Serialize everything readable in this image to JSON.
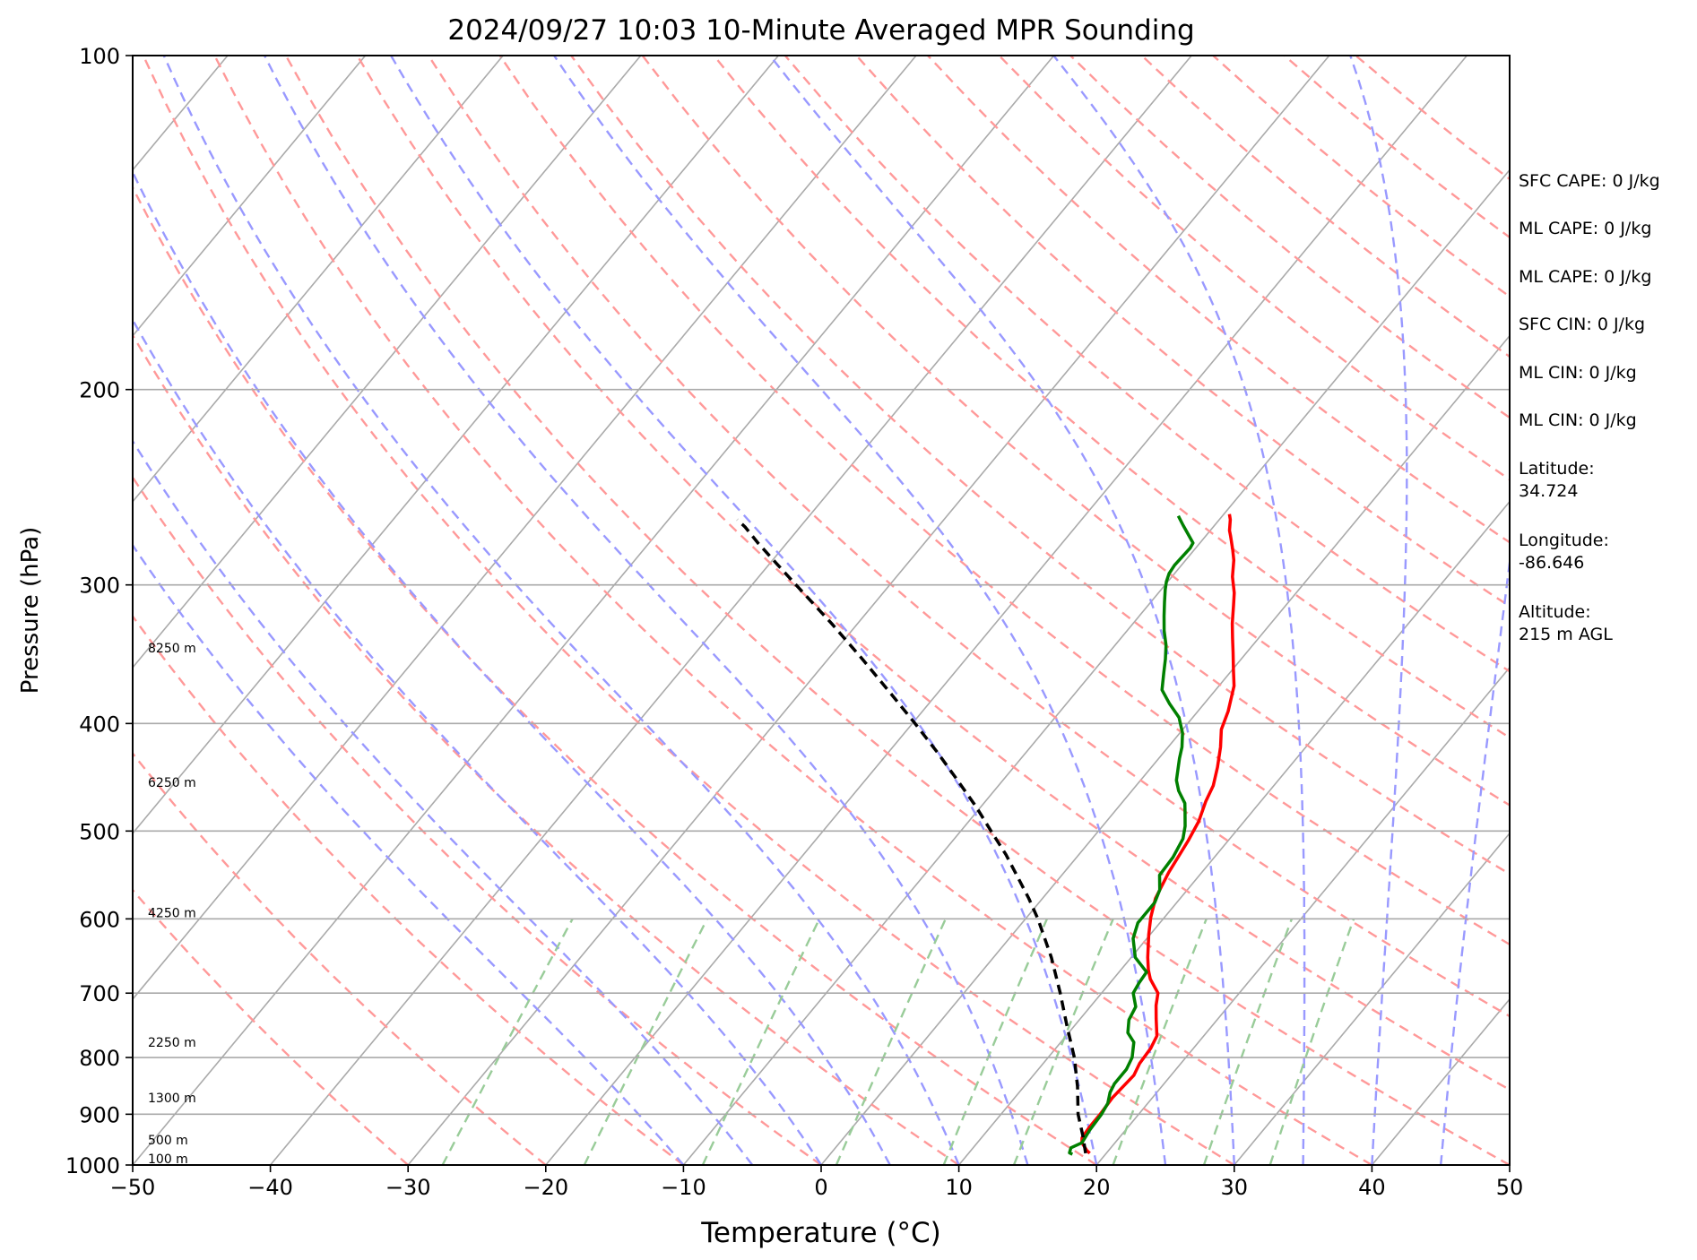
{
  "chart_data": {
    "type": "skew-t",
    "title": "2024/09/27 10:03 10-Minute Averaged MPR Sounding",
    "xlabel": "Temperature (°C)",
    "ylabel": "Pressure (hPa)",
    "xlim": [
      -50,
      50
    ],
    "ylim": [
      1000,
      100
    ],
    "y_scale": "log",
    "x_ticks": [
      "−50",
      "−40",
      "−30",
      "−20",
      "−10",
      "0",
      "10",
      "20",
      "30",
      "40",
      "50"
    ],
    "x_tick_values": [
      -50,
      -40,
      -30,
      -20,
      -10,
      0,
      10,
      20,
      30,
      40,
      50
    ],
    "y_ticks": [
      "100",
      "200",
      "300",
      "400",
      "500",
      "600",
      "700",
      "800",
      "900",
      "1000"
    ],
    "y_tick_values": [
      100,
      200,
      300,
      400,
      500,
      600,
      700,
      800,
      900,
      1000
    ],
    "height_labels": [
      {
        "text": "8250 m",
        "pressure": 345
      },
      {
        "text": "6250 m",
        "pressure": 456
      },
      {
        "text": "4250 m",
        "pressure": 598
      },
      {
        "text": "2250 m",
        "pressure": 782
      },
      {
        "text": "1300 m",
        "pressure": 878
      },
      {
        "text": "500 m",
        "pressure": 958
      },
      {
        "text": "100 m",
        "pressure": 996
      }
    ],
    "series": [
      {
        "key": "temperature",
        "color": "#ff0000",
        "points": [
          [
            18.8,
            976
          ],
          [
            18.4,
            970
          ],
          [
            17.6,
            955
          ],
          [
            17.3,
            945
          ],
          [
            17.2,
            925
          ],
          [
            17.2,
            900
          ],
          [
            17.1,
            870
          ],
          [
            17.3,
            830
          ],
          [
            17.0,
            810
          ],
          [
            16.9,
            785
          ],
          [
            16.6,
            765
          ],
          [
            15.5,
            738
          ],
          [
            14.7,
            718
          ],
          [
            14.1,
            700
          ],
          [
            12.7,
            680
          ],
          [
            12.0,
            667
          ],
          [
            11.2,
            650
          ],
          [
            9.9,
            620
          ],
          [
            9.0,
            598
          ],
          [
            8.2,
            575
          ],
          [
            7.6,
            545
          ],
          [
            7.1,
            510
          ],
          [
            6.7,
            490
          ],
          [
            6.0,
            470
          ],
          [
            5.6,
            455
          ],
          [
            4.8,
            438
          ],
          [
            3.8,
            420
          ],
          [
            2.8,
            405
          ],
          [
            2.2,
            390
          ],
          [
            1.1,
            370
          ],
          [
            0.1,
            358
          ],
          [
            -1.0,
            345
          ],
          [
            -1.9,
            335
          ],
          [
            -2.8,
            325
          ],
          [
            -3.8,
            313
          ],
          [
            -4.5,
            305
          ],
          [
            -5.6,
            295
          ],
          [
            -6.5,
            285
          ],
          [
            -7.2,
            279
          ],
          [
            -8.2,
            271
          ],
          [
            -8.6,
            268
          ],
          [
            -9.2,
            262
          ],
          [
            -9.6,
            259
          ]
        ]
      },
      {
        "key": "dewpoint",
        "color": "#008000",
        "points": [
          [
            17.6,
            978
          ],
          [
            17.3,
            975
          ],
          [
            17.1,
            965
          ],
          [
            17.6,
            955
          ],
          [
            17.4,
            930
          ],
          [
            17.3,
            900
          ],
          [
            17.1,
            880
          ],
          [
            16.6,
            860
          ],
          [
            16.4,
            845
          ],
          [
            16.4,
            820
          ],
          [
            16.1,
            800
          ],
          [
            15.3,
            775
          ],
          [
            14.3,
            760
          ],
          [
            13.6,
            740
          ],
          [
            13.3,
            720
          ],
          [
            12.3,
            700
          ],
          [
            12.1,
            685
          ],
          [
            12.0,
            670
          ],
          [
            10.3,
            650
          ],
          [
            9.0,
            625
          ],
          [
            8.4,
            605
          ],
          [
            8.4,
            580
          ],
          [
            8.0,
            565
          ],
          [
            7.1,
            548
          ],
          [
            7.0,
            528
          ],
          [
            6.6,
            508
          ],
          [
            6.0,
            495
          ],
          [
            5.1,
            480
          ],
          [
            4.6,
            472
          ],
          [
            3.4,
            460
          ],
          [
            2.6,
            450
          ],
          [
            1.5,
            430
          ],
          [
            1.0,
            420
          ],
          [
            0.2,
            408
          ],
          [
            -1.0,
            395
          ],
          [
            -2.5,
            384
          ],
          [
            -3.9,
            373
          ],
          [
            -4.8,
            360
          ],
          [
            -5.5,
            350
          ],
          [
            -6.3,
            340
          ],
          [
            -7.3,
            330
          ],
          [
            -8.2,
            320
          ],
          [
            -9.0,
            311
          ],
          [
            -9.7,
            303
          ],
          [
            -10.1,
            298
          ],
          [
            -10.4,
            293
          ],
          [
            -10.5,
            288
          ],
          [
            -10.4,
            278
          ],
          [
            -10.5,
            275
          ],
          [
            -12.3,
            265
          ],
          [
            -13.2,
            260
          ]
        ]
      },
      {
        "key": "parcel",
        "color": "#000000",
        "dashed": true,
        "points": [
          [
            18.5,
            976
          ],
          [
            17.2,
            940
          ],
          [
            15.6,
            900
          ],
          [
            13.9,
            850
          ],
          [
            11.9,
            800
          ],
          [
            9.5,
            750
          ],
          [
            7.0,
            700
          ],
          [
            4.2,
            650
          ],
          [
            0.9,
            600
          ],
          [
            -1.0,
            575
          ],
          [
            -3.1,
            550
          ],
          [
            -5.3,
            525
          ],
          [
            -7.8,
            500
          ],
          [
            -10.4,
            475
          ],
          [
            -13.3,
            450
          ],
          [
            -16.4,
            425
          ],
          [
            -19.8,
            400
          ],
          [
            -23.5,
            375
          ],
          [
            -27.5,
            350
          ],
          [
            -31.9,
            325
          ],
          [
            -36.8,
            300
          ],
          [
            -39.5,
            287
          ],
          [
            -42.1,
            275
          ],
          [
            -44.0,
            266
          ],
          [
            -45.0,
            262
          ]
        ]
      }
    ],
    "background_lines": {
      "isotherms": {
        "color": "#aaaaaa",
        "values": [
          -140,
          -130,
          -120,
          -110,
          -100,
          -90,
          -80,
          -70,
          -60,
          -50,
          -40,
          -30,
          -20,
          -10,
          0,
          10,
          20,
          30,
          40,
          50
        ]
      },
      "dry_adiabats": {
        "color": "#ff9999",
        "theta_c": [
          -30,
          -20,
          -10,
          0,
          10,
          20,
          30,
          40,
          50,
          60,
          70,
          80,
          90,
          100,
          110,
          120,
          130,
          140,
          150,
          160,
          170,
          180,
          190,
          200
        ]
      },
      "moist_adiabats": {
        "color": "#9999ff",
        "start_temp_c": [
          -10,
          -5,
          0,
          5,
          10,
          15,
          20,
          25,
          30,
          35,
          40,
          45
        ]
      },
      "mixing_ratio": {
        "color": "#99cc99",
        "dew_at_1000": [
          -27.5,
          -17.2,
          -8.6,
          1.1,
          8.9,
          14.0,
          21.2,
          27.8,
          32.6
        ]
      }
    }
  },
  "info_panel": [
    "SFC CAPE: 0 J/kg",
    "ML CAPE: 0 J/kg",
    "ML CAPE: 0 J/kg",
    "SFC CIN: 0 J/kg",
    "ML CIN: 0 J/kg",
    "ML CIN: 0 J/kg",
    "Latitude:\n34.724",
    "Longitude:\n-86.646",
    "Altitude:\n215 m AGL"
  ]
}
